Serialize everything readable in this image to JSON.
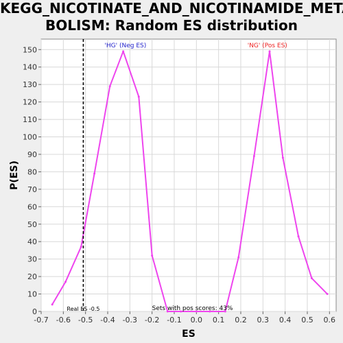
{
  "chart_data": {
    "type": "line",
    "title_lines": [
      "KEGG_NICOTINATE_AND_NICOTINAMIDE_META",
      "BOLISM: Random ES distribution"
    ],
    "xlabel": "ES",
    "ylabel": "P(ES)",
    "xlim": [
      -0.7,
      0.63
    ],
    "ylim": [
      0,
      156
    ],
    "xticks": [
      -0.7,
      -0.6,
      -0.5,
      -0.4,
      -0.3,
      -0.2,
      -0.1,
      0.0,
      0.1,
      0.2,
      0.3,
      0.4,
      0.5,
      0.6
    ],
    "xtick_labels": [
      "-0.7",
      "-0.6",
      "-0.5",
      "-0.4",
      "-0.3",
      "-0.2",
      "-0.1",
      "0.0",
      "0.1",
      "0.2",
      "0.3",
      "0.4",
      "0.5",
      "0.6"
    ],
    "yticks": [
      0,
      10,
      20,
      30,
      40,
      50,
      60,
      70,
      80,
      90,
      100,
      110,
      120,
      130,
      140,
      150
    ],
    "ytick_labels": [
      "0",
      "10",
      "20",
      "30",
      "40",
      "50",
      "60",
      "70",
      "80",
      "90",
      "100",
      "110",
      "120",
      "130",
      "140",
      "150"
    ],
    "grid": true,
    "series": [
      {
        "x": [
          -0.65,
          -0.59,
          -0.52,
          -0.46,
          -0.39,
          -0.33,
          -0.26,
          -0.2,
          -0.13,
          -0.07,
          0.0,
          0.06,
          0.13,
          0.19,
          0.26,
          0.33,
          0.39,
          0.46,
          0.52,
          0.59
        ],
        "values": [
          4,
          17,
          37,
          79,
          129,
          149,
          123,
          32,
          0,
          0,
          0,
          0,
          0,
          31,
          89,
          149,
          88,
          43,
          19,
          10
        ],
        "color": "#ee44ee"
      }
    ],
    "real_es": -0.51,
    "annotations": {
      "neg_label": "'HG' (Neg ES)",
      "neg_label_x": -0.32,
      "neg_color": "#2222cc",
      "pos_label": "'NG' (Pos ES)",
      "pos_label_x": 0.32,
      "pos_color": "#ee2222",
      "real_es_label": "Real ES -0.5",
      "pos_scores_label": "Sets with pos scores: 43%"
    }
  }
}
